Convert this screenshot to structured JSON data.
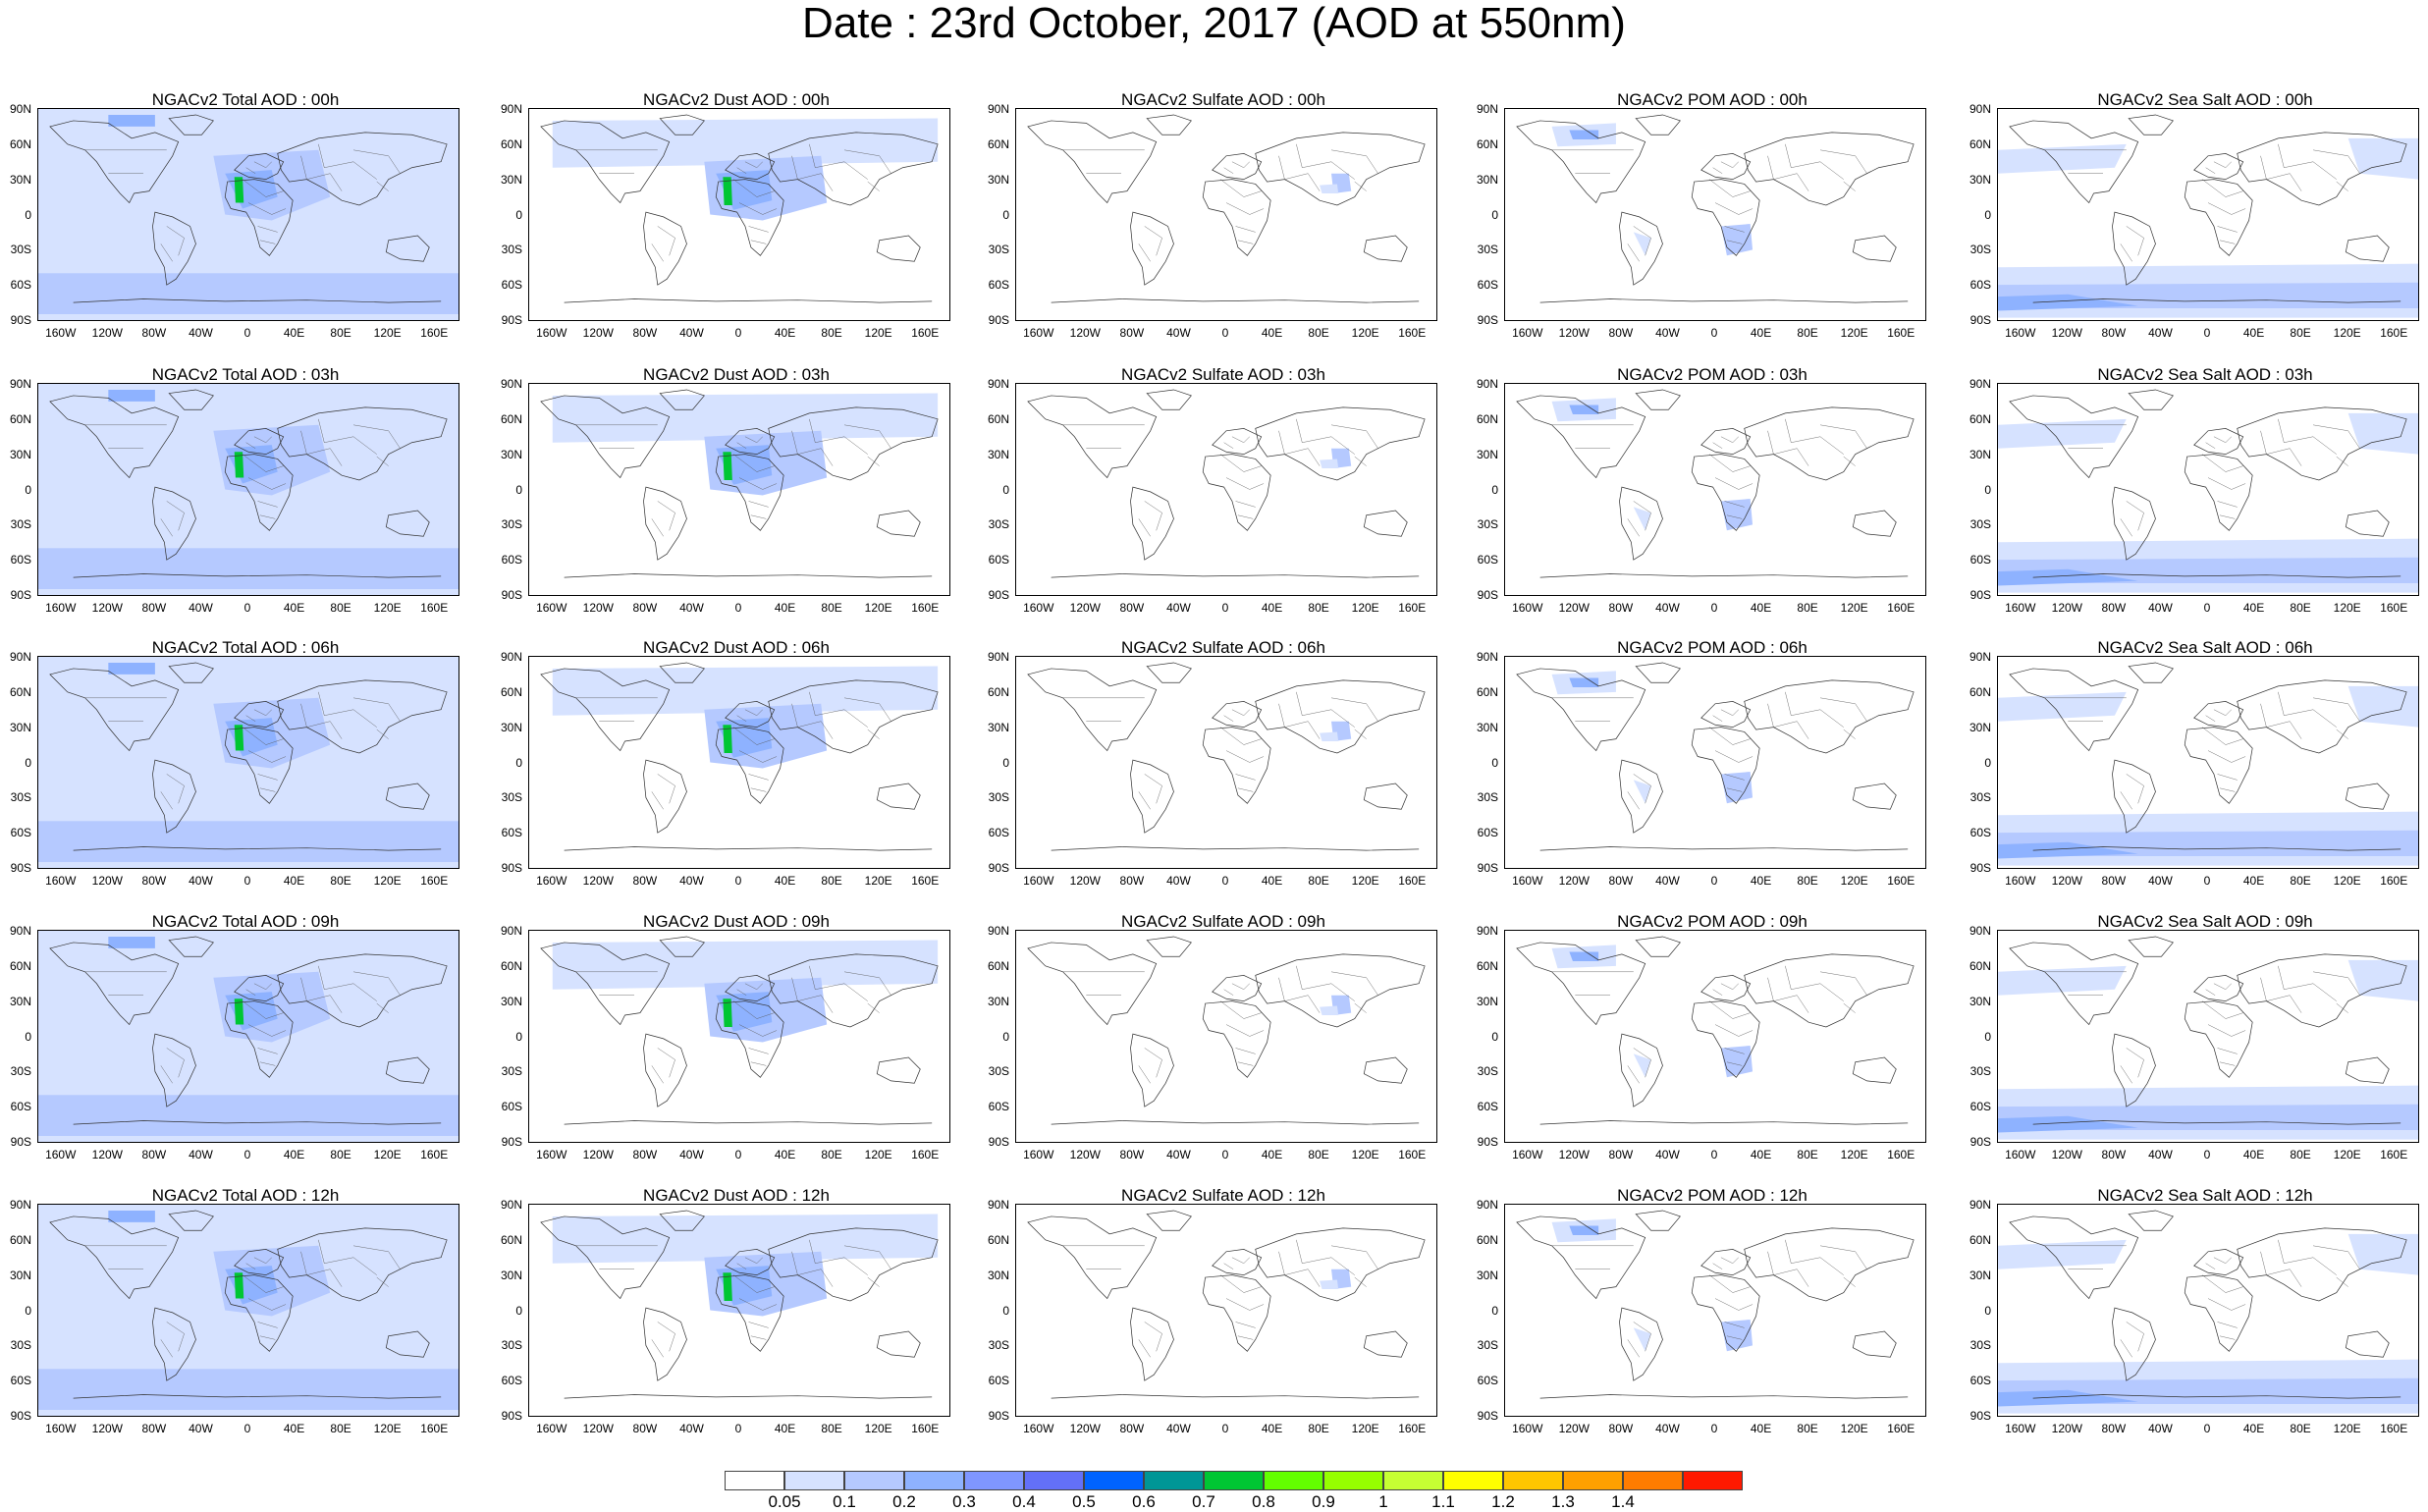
{
  "title": "Date : 23rd October, 2017 (AOD at 550nm)",
  "lat_labels": [
    "90N",
    "60N",
    "30N",
    "0",
    "30S",
    "60S",
    "90S"
  ],
  "lon_labels": [
    "160W",
    "120W",
    "80W",
    "40W",
    "0",
    "40E",
    "80E",
    "120E",
    "160E"
  ],
  "species": [
    {
      "key": "total",
      "icon": "total-aod-map"
    },
    {
      "key": "dust",
      "icon": "dust-aod-map"
    },
    {
      "key": "sulfate",
      "icon": "sulfate-aod-map"
    },
    {
      "key": "pom",
      "icon": "pom-aod-map"
    },
    {
      "key": "seasalt",
      "icon": "sea-salt-aod-map"
    }
  ],
  "panel_titles": [
    [
      "NGACv2 Total AOD : 00h",
      "NGACv2 Dust AOD : 00h",
      "NGACv2 Sulfate AOD : 00h",
      "NGACv2 POM AOD : 00h",
      "NGACv2 Sea Salt AOD : 00h"
    ],
    [
      "NGACv2 Total AOD : 03h",
      "NGACv2 Dust AOD : 03h",
      "NGACv2 Sulfate AOD : 03h",
      "NGACv2 POM AOD : 03h",
      "NGACv2 Sea Salt AOD : 03h"
    ],
    [
      "NGACv2 Total AOD : 06h",
      "NGACv2 Dust AOD : 06h",
      "NGACv2 Sulfate AOD : 06h",
      "NGACv2 POM AOD : 06h",
      "NGACv2 Sea Salt AOD : 06h"
    ],
    [
      "NGACv2 Total AOD : 09h",
      "NGACv2 Dust AOD : 09h",
      "NGACv2 Sulfate AOD : 09h",
      "NGACv2 POM AOD : 09h",
      "NGACv2 Sea Salt  AOD : 09h"
    ],
    [
      "NGACv2 Total AOD  : 12h",
      "NGACv2 Dust AOD : 12h",
      "NGACv2 Sulfate AOD : 12h",
      "NGACv2 POM  AOD : 12h",
      "NGACv2 Sea Salt  AOD : 12h"
    ]
  ],
  "colorbar": {
    "colors": [
      "#ffffff",
      "#d6e2ff",
      "#b5c9ff",
      "#8eb2ff",
      "#7f96ff",
      "#6370f8",
      "#0063ff",
      "#009696",
      "#00c633",
      "#63ff00",
      "#96ff00",
      "#c6ff33",
      "#ffff00",
      "#ffc600",
      "#ffa000",
      "#ff7c00",
      "#ff1900"
    ],
    "labels": [
      "0.05",
      "0.1",
      "0.2",
      "0.3",
      "0.4",
      "0.5",
      "0.6",
      "0.7",
      "0.8",
      "0.9",
      "1",
      "1.1",
      "1.2",
      "1.3",
      "1.4"
    ]
  }
}
